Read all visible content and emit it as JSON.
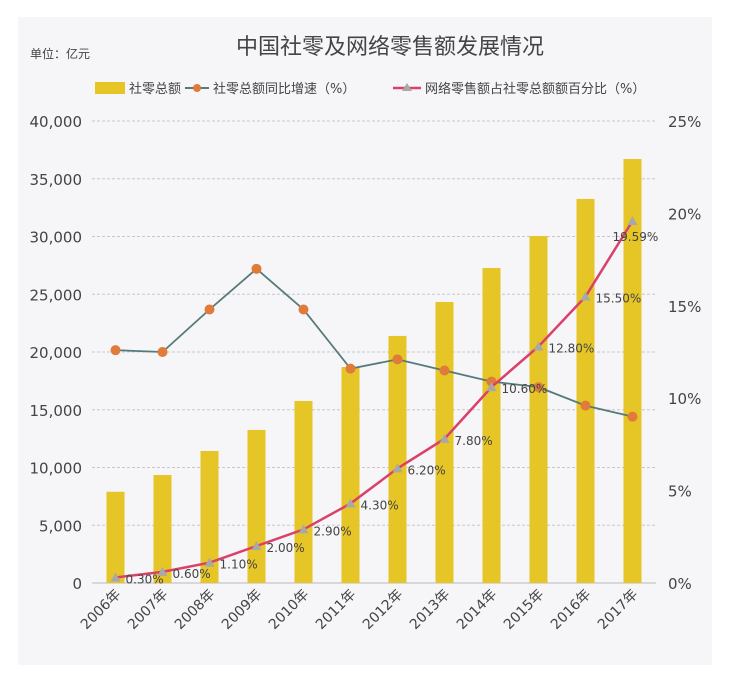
{
  "chart_data": {
    "type": "bar",
    "title": "中国社零及网络零售额发展情况",
    "unit_label": "单位：亿元",
    "categories": [
      "2006年",
      "2007年",
      "2008年",
      "2009年",
      "2010年",
      "2011年",
      "2012年",
      "2013年",
      "2014年",
      "2015年",
      "2016年",
      "2017年"
    ],
    "series": [
      {
        "name": "社零总额",
        "type": "bar",
        "axis": "left",
        "color": "#e6c526",
        "values": [
          7900,
          9350,
          11430,
          13250,
          15760,
          18700,
          21390,
          24330,
          27270,
          30040,
          33250,
          36710
        ]
      },
      {
        "name": "社零总额同比增速（%）",
        "type": "line",
        "axis": "right",
        "color": "#557a7a",
        "marker_color": "#e07b39",
        "values": [
          12.6,
          12.5,
          14.8,
          17.0,
          14.8,
          11.6,
          12.1,
          11.5,
          10.9,
          10.6,
          9.6,
          9.0
        ]
      },
      {
        "name": "网络零售额占社零总额额百分比（%）",
        "type": "line",
        "axis": "right",
        "color": "#d9416b",
        "marker_color": "#a8a8a8",
        "values": [
          0.3,
          0.6,
          1.1,
          2.0,
          2.9,
          4.3,
          6.2,
          7.8,
          10.6,
          12.8,
          15.5,
          19.59
        ],
        "labels": [
          "0.30%",
          "0.60%",
          "1.10%",
          "2.00%",
          "2.90%",
          "4.30%",
          "6.20%",
          "7.80%",
          "10.60%",
          "12.80%",
          "15.50%",
          "19.59%"
        ]
      }
    ],
    "y_left": {
      "ylim": [
        0,
        40000
      ],
      "ticks": [
        "0",
        "5,000",
        "10,000",
        "15,000",
        "20,000",
        "25,000",
        "30,000",
        "35,000",
        "40,000"
      ]
    },
    "y_right": {
      "ylim": [
        0,
        25
      ],
      "ticks": [
        "0%",
        "5%",
        "10%",
        "15%",
        "20%",
        "25%"
      ]
    },
    "grid": true,
    "legend_position": "top"
  }
}
